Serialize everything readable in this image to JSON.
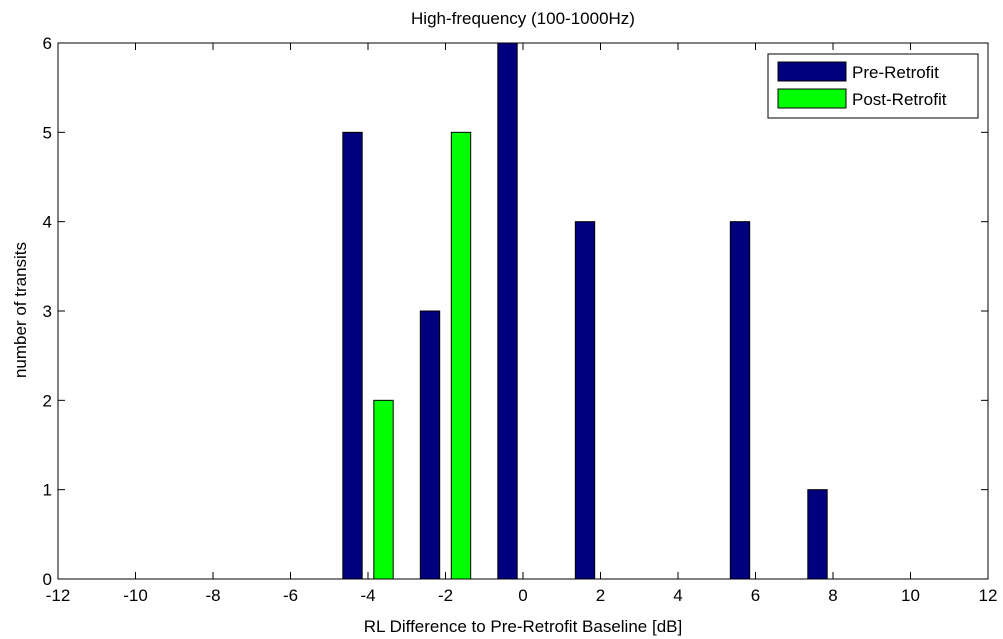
{
  "chart_data": {
    "type": "bar",
    "title": "High-frequency (100-1000Hz)",
    "xlabel": "RL Difference to Pre-Retrofit Baseline [dB]",
    "ylabel": "number of transits",
    "xlim": [
      -12,
      12
    ],
    "ylim": [
      0,
      6
    ],
    "xticks": [
      -12,
      -10,
      -8,
      -6,
      -4,
      -2,
      0,
      2,
      4,
      6,
      8,
      10,
      12
    ],
    "yticks": [
      0,
      1,
      2,
      3,
      4,
      5,
      6
    ],
    "grid": false,
    "legend_position": "top-right",
    "x": [
      -4,
      -2,
      0,
      2,
      6,
      8
    ],
    "series": [
      {
        "name": "Pre-Retrofit",
        "color": "#00007f",
        "values": [
          5,
          3,
          6,
          4,
          4,
          1
        ]
      },
      {
        "name": "Post-Retrofit",
        "color": "#00ff00",
        "values": [
          2,
          5,
          0,
          0,
          0,
          0
        ]
      }
    ]
  }
}
